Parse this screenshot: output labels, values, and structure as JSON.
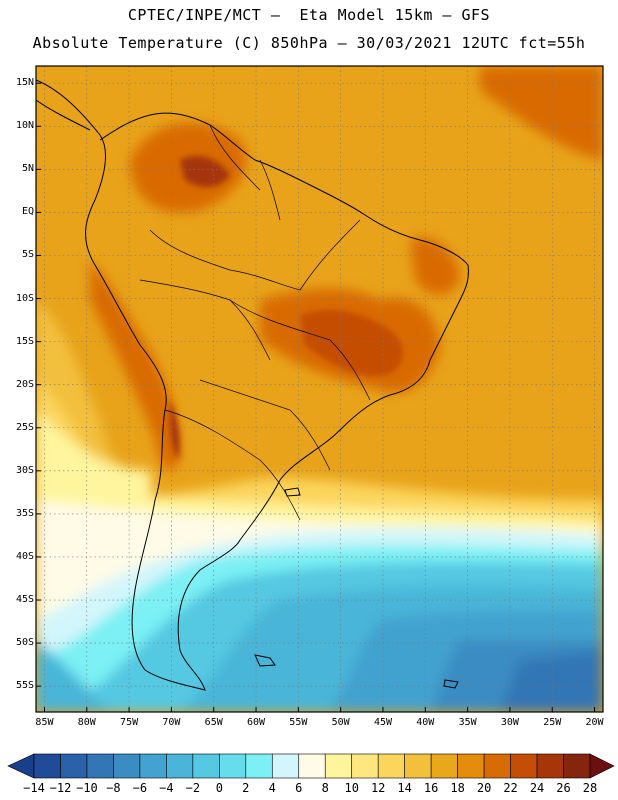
{
  "header": {
    "title_line1": "CPTEC/INPE/MCT –  Eta Model 15km – GFS",
    "title_line2": "Absolute Temperature (C) 850hPa – 30/03/2021 12UTC fct=55h"
  },
  "map": {
    "extent": {
      "lon_min": -86,
      "lon_max": -19,
      "lat_min": -58,
      "lat_max": 17
    },
    "lat_labels": [
      "15N",
      "10N",
      "5N",
      "EQ",
      "5S",
      "10S",
      "15S",
      "20S",
      "25S",
      "30S",
      "35S",
      "40S",
      "45S",
      "50S",
      "55S"
    ],
    "lon_labels": [
      "85W",
      "80W",
      "75W",
      "70W",
      "65W",
      "60W",
      "55W",
      "50W",
      "45W",
      "40W",
      "35W",
      "30W",
      "25W",
      "20W"
    ],
    "background_color": "#e8a31a",
    "grid": true
  },
  "colorbar": {
    "labels": [
      "-14",
      "-12",
      "-10",
      "-8",
      "-6",
      "-4",
      "-2",
      "0",
      "2",
      "4",
      "6",
      "8",
      "10",
      "12",
      "14",
      "16",
      "18",
      "20",
      "22",
      "24",
      "26",
      "28"
    ],
    "colors": [
      "#1f4b99",
      "#2a61a8",
      "#3276b5",
      "#3a8cc3",
      "#43a2cf",
      "#4ab5d8",
      "#55c8e2",
      "#66dcec",
      "#7cf0f4",
      "#d2f6fb",
      "#fffbe6",
      "#fff59e",
      "#ffe780",
      "#fbd55c",
      "#f3c03c",
      "#e9a81c",
      "#e48d0c",
      "#d96b04",
      "#c54e06",
      "#a6360a",
      "#84250e"
    ],
    "arrow_low_color": "#1a3f8a",
    "arrow_high_color": "#6a1010"
  }
}
